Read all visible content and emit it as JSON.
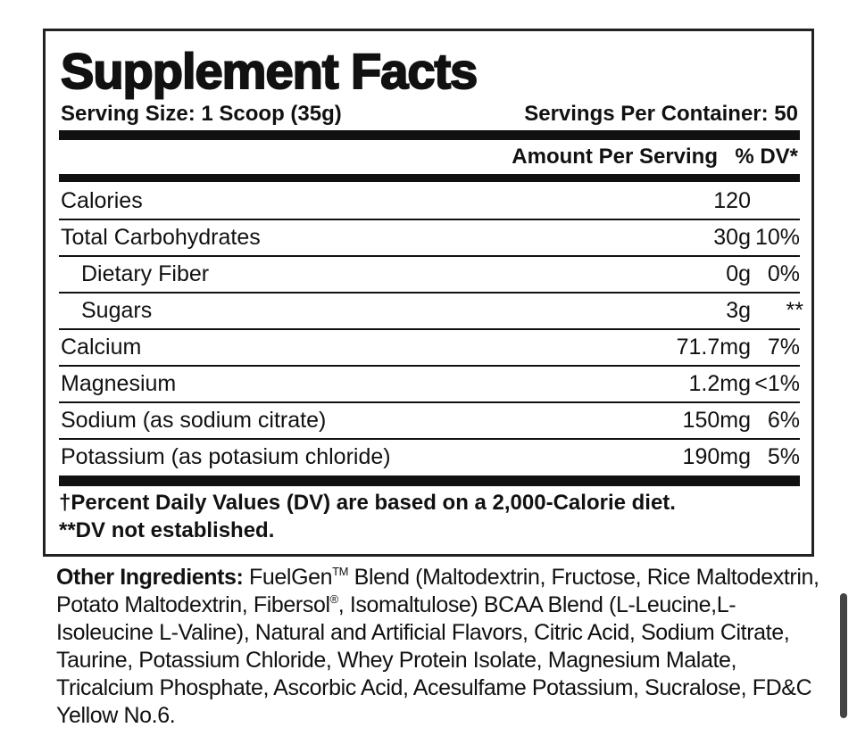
{
  "title": "Supplement Facts",
  "serving_size": "Serving Size: 1 Scoop (35g)",
  "servings_per_container": "Servings Per Container: 50",
  "header": {
    "amount": "Amount Per Serving",
    "dv": "% DV*"
  },
  "rows": [
    {
      "name": "Calories",
      "amount": "120",
      "dv": ""
    },
    {
      "name": "Total Carbohydrates",
      "amount": "30g",
      "dv": "10%",
      "sub": [
        {
          "name": "Dietary Fiber",
          "amount": "0g",
          "dv": "0%"
        },
        {
          "name": "Sugars",
          "amount": "3g",
          "dv": "**"
        }
      ]
    },
    {
      "name": "Calcium",
      "amount": "71.7mg",
      "dv": "7%"
    },
    {
      "name": "Magnesium",
      "amount": "1.2mg",
      "dv": "<1%"
    },
    {
      "name": "Sodium (as sodium citrate)",
      "amount": "150mg",
      "dv": "6%"
    },
    {
      "name": "Potassium (as potasium chloride)",
      "amount": "190mg",
      "dv": "5%"
    }
  ],
  "footnotes": [
    "†Percent Daily Values (DV) are based on a 2,000-Calorie diet.",
    "**DV not established."
  ],
  "ingredients": {
    "label": "Other Ingredients:",
    "text_1": " FuelGen",
    "tm": "TM",
    "text_2": " Blend (Maltodextrin, Fructose, Rice Maltodextrin, Potato Maltodextrin, Fibersol",
    "reg": "®",
    "text_3": ", Isomaltulose) BCAA Blend (L-Leucine,L-Isoleucine L-Valine), Natural and Artificial Flavors, Citric Acid, Sodium Citrate, Taurine, Potassium Chloride, Whey Protein Isolate, Magnesium Malate, Tricalcium Phosphate, Ascorbic Acid, Acesulfame Potassium, Sucralose, FD&C Yellow No.6."
  }
}
